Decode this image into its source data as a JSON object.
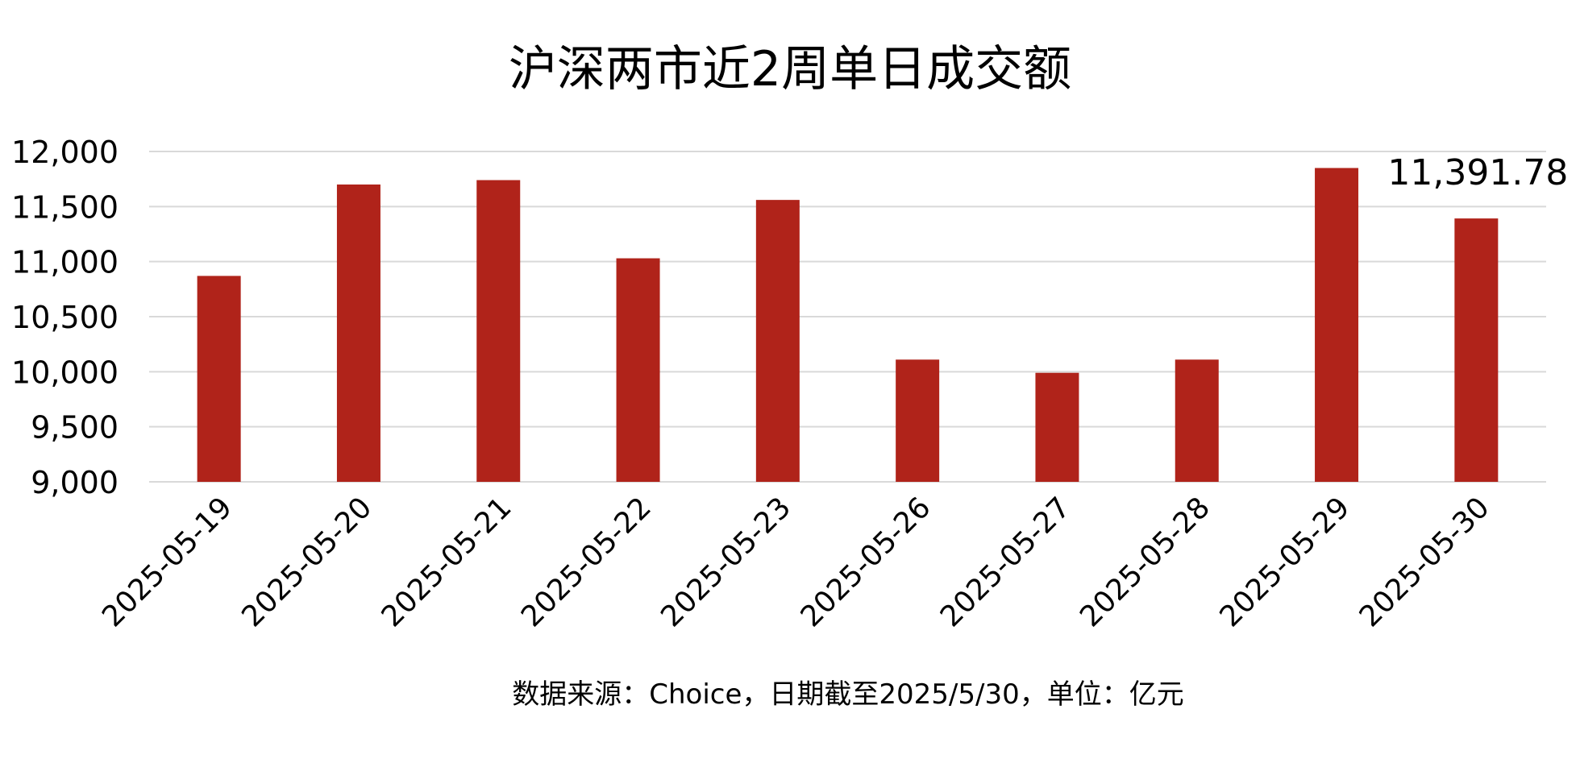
{
  "chart_data": {
    "type": "bar",
    "title": "沪深两市近2周单日成交额",
    "categories": [
      "2025-05-19",
      "2025-05-20",
      "2025-05-21",
      "2025-05-22",
      "2025-05-23",
      "2025-05-26",
      "2025-05-27",
      "2025-05-28",
      "2025-05-29",
      "2025-05-30"
    ],
    "values": [
      10870,
      11700,
      11740,
      11030,
      11560,
      10110,
      9990,
      10110,
      11850,
      11391.78
    ],
    "ylim": [
      9000,
      12000
    ],
    "yticks": [
      9000,
      9500,
      10000,
      10500,
      11000,
      11500,
      12000
    ],
    "ytick_labels": [
      "9,000",
      "9,500",
      "10,000",
      "10,500",
      "11,000",
      "11,500",
      "12,000"
    ],
    "xlabel": "",
    "ylabel": "",
    "grid": true,
    "bar_color": "#B0231A",
    "gridline_color": "#D9D9D9",
    "annotation": {
      "category": "2025-05-30",
      "text": "11,391.78"
    },
    "footnote": "数据来源：Choice，日期截至2025/5/30，单位：亿元"
  }
}
